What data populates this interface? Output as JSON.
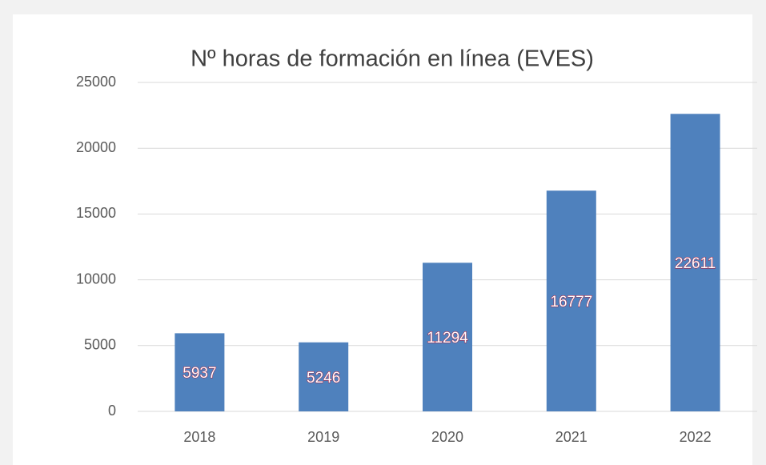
{
  "chart_data": {
    "type": "bar",
    "title": "Nº horas de formación en línea (EVES)",
    "categories": [
      "2018",
      "2019",
      "2020",
      "2021",
      "2022"
    ],
    "values": [
      5937,
      5246,
      11294,
      16777,
      22611
    ],
    "color": "#4f81bd",
    "ylim": [
      0,
      25000
    ],
    "yticks": [
      0,
      5000,
      10000,
      15000,
      20000,
      25000
    ],
    "grid": true
  }
}
